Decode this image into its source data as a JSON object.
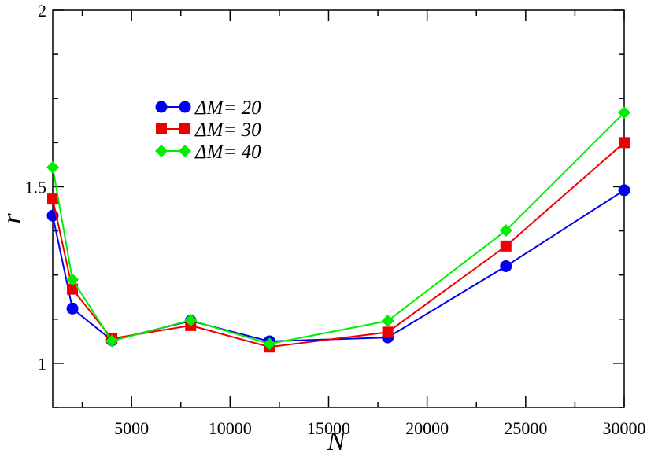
{
  "chart_data": {
    "type": "line",
    "title": "",
    "xlabel": "N",
    "ylabel": "r",
    "xlim": [
      1000,
      30000
    ],
    "ylim": [
      0.875,
      2.0
    ],
    "x_ticks": [
      5000,
      10000,
      15000,
      20000,
      25000,
      30000
    ],
    "x_tick_labels": [
      "5000",
      "10000",
      "15000",
      "20000",
      "25000",
      "30000"
    ],
    "y_ticks": [
      1,
      1.5,
      2
    ],
    "y_tick_labels": [
      "1",
      "1.5",
      "2"
    ],
    "grid": false,
    "legend_position": "upper-left",
    "series": [
      {
        "name": "ΔM= 20",
        "label_symbol": "ΔM=",
        "label_value": "20",
        "color": "#0000ee",
        "marker": "circle",
        "x": [
          1000,
          2000,
          4000,
          8000,
          12000,
          18000,
          24000,
          30000
        ],
        "y": [
          1.418,
          1.155,
          1.065,
          1.12,
          1.062,
          1.073,
          1.275,
          1.49
        ]
      },
      {
        "name": "ΔM= 30",
        "label_symbol": "ΔM=",
        "label_value": "30",
        "color": "#ee0000",
        "marker": "square",
        "x": [
          1000,
          2000,
          4000,
          8000,
          12000,
          18000,
          24000,
          30000
        ],
        "y": [
          1.465,
          1.21,
          1.07,
          1.107,
          1.046,
          1.088,
          1.332,
          1.625
        ]
      },
      {
        "name": "ΔM= 40",
        "label_symbol": "ΔM=",
        "label_value": "40",
        "color": "#00ee00",
        "marker": "diamond",
        "x": [
          1000,
          2000,
          4000,
          8000,
          12000,
          18000,
          24000,
          30000
        ],
        "y": [
          1.555,
          1.237,
          1.063,
          1.122,
          1.055,
          1.12,
          1.376,
          1.71
        ]
      }
    ]
  }
}
